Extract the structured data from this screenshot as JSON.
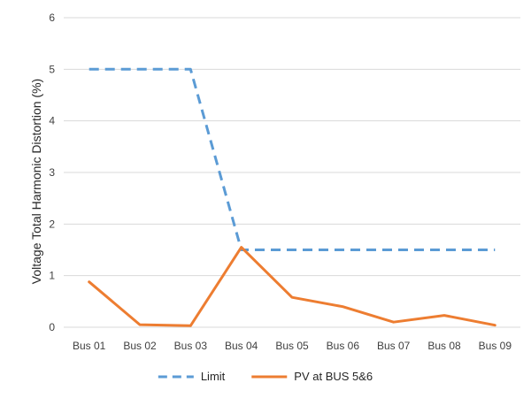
{
  "chart_data": {
    "type": "line",
    "title": "",
    "xlabel": "",
    "ylabel": "Voltage Total Harmonic Distortion (%)",
    "categories": [
      "Bus 01",
      "Bus 02",
      "Bus 03",
      "Bus 04",
      "Bus 05",
      "Bus 06",
      "Bus 07",
      "Bus 08",
      "Bus 09"
    ],
    "ylim": [
      0,
      6
    ],
    "yticks": [
      0,
      1,
      2,
      3,
      4,
      5,
      6
    ],
    "grid": true,
    "legend_position": "bottom",
    "series": [
      {
        "name": "Limit",
        "style": "dashed",
        "color": "#5B9BD5",
        "values": [
          5,
          5,
          5,
          1.5,
          1.5,
          1.5,
          1.5,
          1.5,
          1.5
        ]
      },
      {
        "name": "PV at BUS 5&6",
        "style": "solid",
        "color": "#ED7D31",
        "values": [
          0.88,
          0.05,
          0.03,
          1.55,
          0.58,
          0.4,
          0.1,
          0.23,
          0.04
        ]
      }
    ]
  }
}
